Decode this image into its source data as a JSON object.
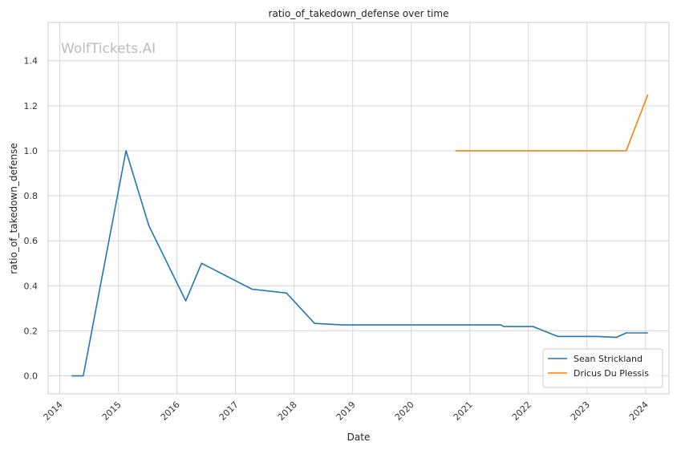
{
  "watermark": "WolfTickets.AI",
  "chart_data": {
    "type": "line",
    "title": "ratio_of_takedown_defense over time",
    "xlabel": "Date",
    "ylabel": "ratio_of_takedown_defense",
    "xlim": [
      2013.8,
      2024.4
    ],
    "ylim": [
      -0.08,
      1.57
    ],
    "x_ticks": [
      "2014",
      "2015",
      "2016",
      "2017",
      "2018",
      "2019",
      "2020",
      "2021",
      "2022",
      "2023",
      "2024"
    ],
    "y_ticks": [
      "0.0",
      "0.2",
      "0.4",
      "0.6",
      "0.8",
      "1.0",
      "1.2",
      "1.4"
    ],
    "grid": true,
    "legend_position": "lower-right",
    "series": [
      {
        "name": "Sean Strickland",
        "color": "#1f77b4",
        "x": [
          2014.2,
          2014.4,
          2015.13,
          2015.52,
          2016.15,
          2016.42,
          2017.28,
          2017.87,
          2018.35,
          2018.83,
          2021.53,
          2021.58,
          2022.08,
          2022.5,
          2023.17,
          2023.5,
          2023.67,
          2024.04
        ],
        "y": [
          0.0,
          0.0,
          1.0,
          0.667,
          0.333,
          0.5,
          0.385,
          0.368,
          0.233,
          0.226,
          0.226,
          0.219,
          0.219,
          0.175,
          0.175,
          0.171,
          0.191,
          0.191
        ]
      },
      {
        "name": "Dricus Du Plessis",
        "color": "#ff7f0e",
        "x": [
          2020.75,
          2023.67,
          2024.04
        ],
        "y": [
          1.0,
          1.0,
          1.25
        ]
      }
    ]
  }
}
